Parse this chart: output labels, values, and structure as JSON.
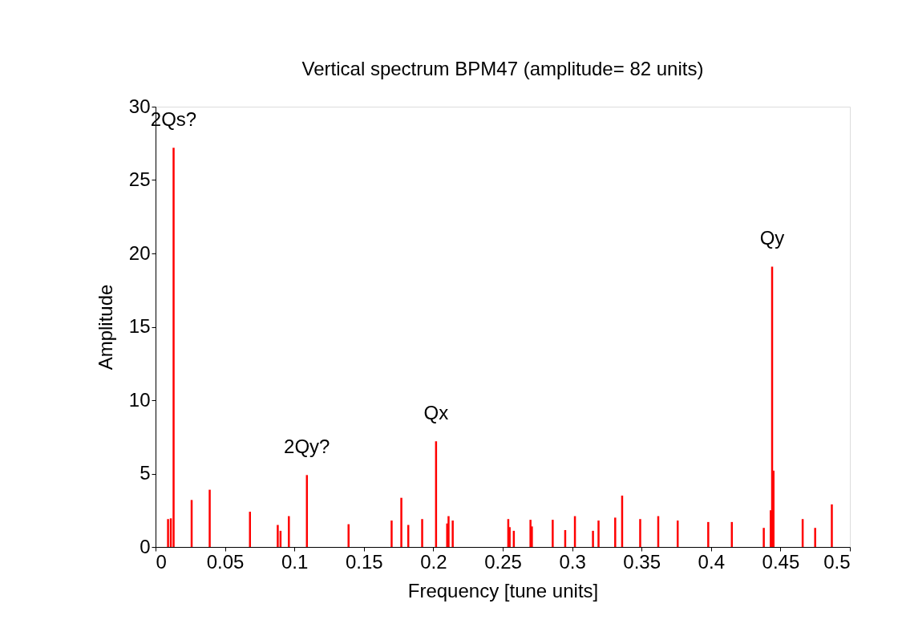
{
  "chart_data": {
    "type": "bar",
    "title": "Vertical spectrum BPM47 (amplitude= 82 units)",
    "xlabel": "Frequency [tune units]",
    "ylabel": "Amplitude",
    "x": [
      0.009,
      0.011,
      0.013,
      0.026,
      0.039,
      0.068,
      0.088,
      0.09,
      0.096,
      0.109,
      0.139,
      0.17,
      0.177,
      0.182,
      0.192,
      0.202,
      0.21,
      0.211,
      0.214,
      0.254,
      0.255,
      0.258,
      0.27,
      0.271,
      0.286,
      0.295,
      0.302,
      0.315,
      0.319,
      0.331,
      0.336,
      0.349,
      0.362,
      0.376,
      0.398,
      0.415,
      0.438,
      0.443,
      0.444,
      0.445,
      0.466,
      0.475,
      0.487
    ],
    "values": [
      1.9,
      1.95,
      27.2,
      3.2,
      3.9,
      2.4,
      1.5,
      1.1,
      2.1,
      4.9,
      1.55,
      1.8,
      3.35,
      1.5,
      1.9,
      7.2,
      1.6,
      2.1,
      1.8,
      1.9,
      1.35,
      1.1,
      1.85,
      1.4,
      1.85,
      1.15,
      2.1,
      1.1,
      1.8,
      2.0,
      3.5,
      1.9,
      2.1,
      1.8,
      1.7,
      1.7,
      1.3,
      2.5,
      19.1,
      5.2,
      1.9,
      1.3,
      2.9
    ],
    "color": "#ff0000",
    "xlim": [
      0,
      0.5
    ],
    "xticks": [
      0,
      0.05,
      0.1,
      0.15,
      0.2,
      0.25,
      0.3,
      0.35,
      0.4,
      0.45,
      0.5
    ],
    "ylim": [
      0,
      30
    ],
    "yticks": [
      0,
      5,
      10,
      15,
      20,
      25,
      30
    ],
    "grid": false,
    "annotations": [
      {
        "text": "2Qs?",
        "x": 0.013,
        "y": 27.2
      },
      {
        "text": "2Qy?",
        "x": 0.109,
        "y": 4.9
      },
      {
        "text": "Qx",
        "x": 0.202,
        "y": 7.2
      },
      {
        "text": "Qy",
        "x": 0.444,
        "y": 19.1
      }
    ]
  }
}
